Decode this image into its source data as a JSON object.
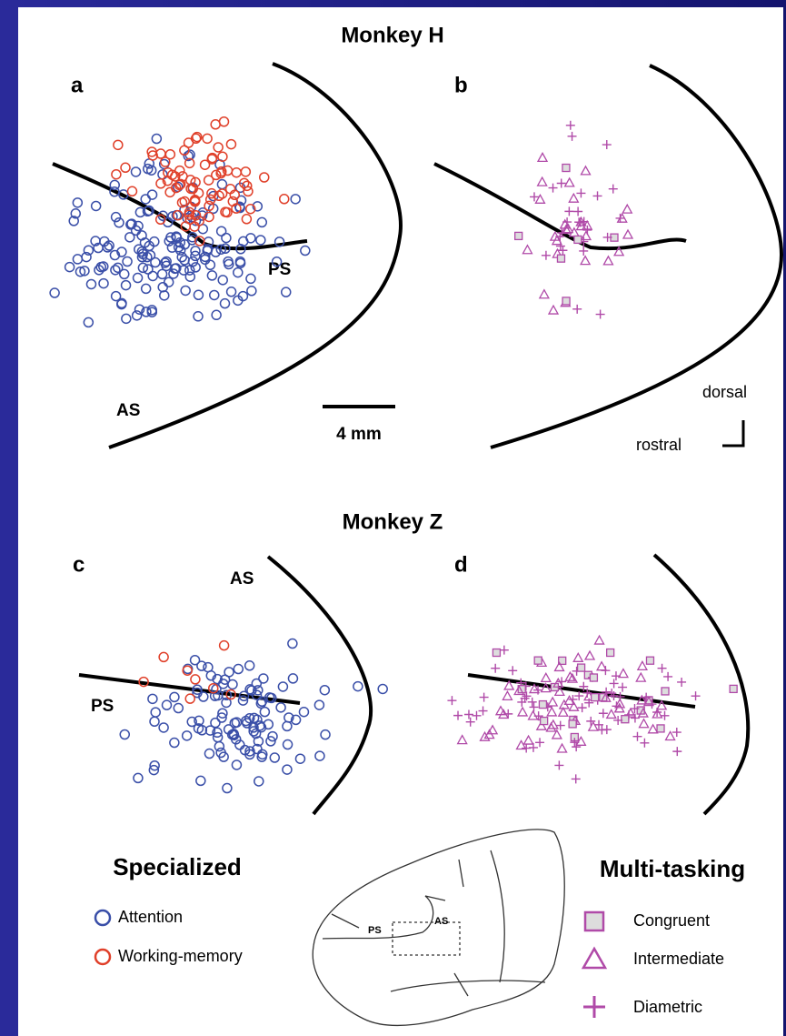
{
  "sections": [
    {
      "title": "Monkey H",
      "panels": [
        {
          "label": "a",
          "sulci": [
            "PS",
            "AS"
          ]
        },
        {
          "label": "b"
        }
      ],
      "scale_bar": "4 mm",
      "orientation": [
        "dorsal",
        "rostral"
      ]
    },
    {
      "title": "Monkey Z",
      "panels": [
        {
          "label": "c",
          "sulci": [
            "AS",
            "PS"
          ]
        },
        {
          "label": "d"
        }
      ]
    }
  ],
  "legend_specialized": {
    "title": "Specialized",
    "items": [
      "Attention",
      "Working-memory"
    ]
  },
  "legend_multitasking": {
    "title": "Multi-tasking",
    "items": [
      "Congruent",
      "Intermediate",
      "Diametric"
    ]
  },
  "brain_inset": {
    "labels": [
      "AS",
      "PS"
    ]
  }
}
